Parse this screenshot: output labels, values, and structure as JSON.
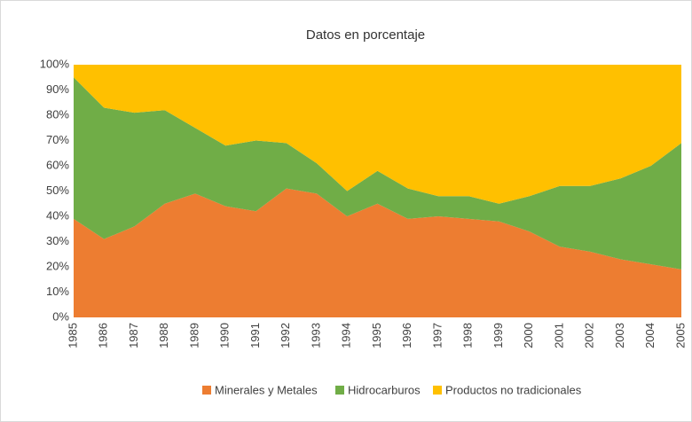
{
  "chart_data": {
    "type": "stacked_area",
    "title": "Datos en porcentaje",
    "categories": [
      "1985",
      "1986",
      "1987",
      "1988",
      "1989",
      "1990",
      "1991",
      "1992",
      "1993",
      "1994",
      "1995",
      "1996",
      "1997",
      "1998",
      "1999",
      "2000",
      "2001",
      "2002",
      "2003",
      "2004",
      "2005"
    ],
    "series": [
      {
        "name": "Minerales y Metales",
        "color": "#ed7d31",
        "values": [
          39,
          31,
          36,
          45,
          49,
          44,
          42,
          51,
          49,
          40,
          45,
          39,
          40,
          39,
          38,
          34,
          28,
          26,
          23,
          21,
          19
        ]
      },
      {
        "name": "Hidrocarburos",
        "color": "#70ad47",
        "values": [
          56,
          52,
          45,
          37,
          26,
          24,
          28,
          18,
          12,
          10,
          13,
          12,
          8,
          9,
          7,
          14,
          24,
          26,
          32,
          39,
          50
        ]
      },
      {
        "name": "Productos no tradicionales",
        "color": "#ffc000",
        "values": [
          5,
          17,
          19,
          18,
          25,
          32,
          30,
          31,
          39,
          50,
          42,
          49,
          52,
          52,
          55,
          52,
          48,
          48,
          45,
          40,
          31
        ]
      }
    ],
    "ylim": [
      0,
      100
    ],
    "yticks": [
      {
        "value": 0,
        "label": "0%"
      },
      {
        "value": 10,
        "label": "10%"
      },
      {
        "value": 20,
        "label": "20%"
      },
      {
        "value": 30,
        "label": "30%"
      },
      {
        "value": 40,
        "label": "40%"
      },
      {
        "value": 50,
        "label": "50%"
      },
      {
        "value": 60,
        "label": "60%"
      },
      {
        "value": 70,
        "label": "70%"
      },
      {
        "value": 80,
        "label": "80%"
      },
      {
        "value": 90,
        "label": "90%"
      },
      {
        "value": 100,
        "label": "100%"
      }
    ],
    "grid": false,
    "legend": "bottom"
  }
}
